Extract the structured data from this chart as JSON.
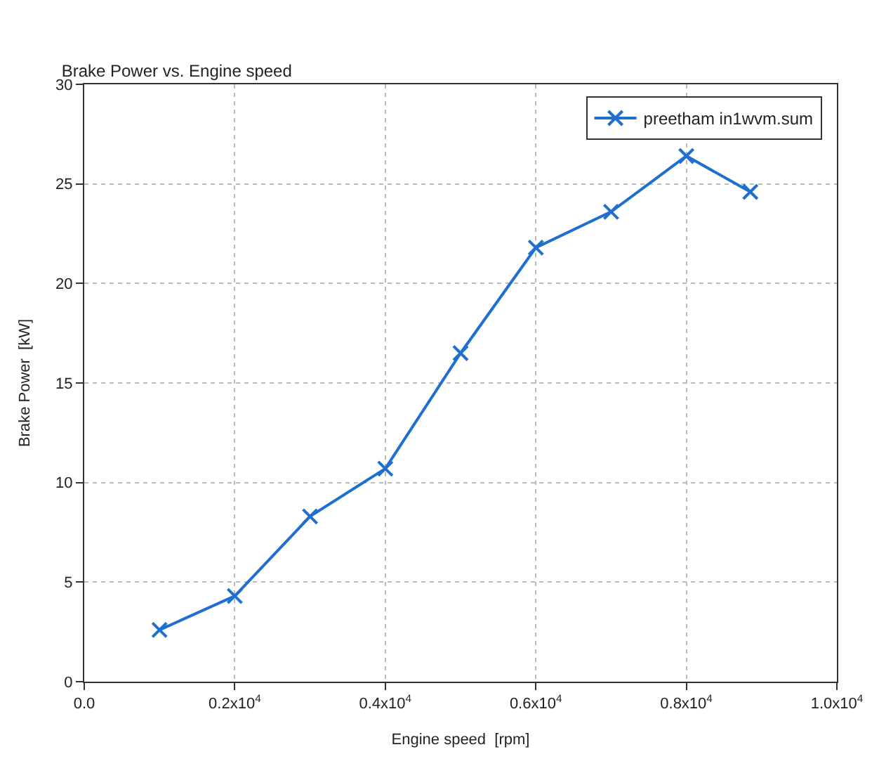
{
  "chart_data": {
    "type": "line",
    "title": "Brake Power vs. Engine speed",
    "xlabel": "Engine speed  [rpm]",
    "ylabel": "Brake Power  [kW]",
    "x": [
      1000,
      2000,
      3000,
      4000,
      5000,
      6000,
      7000,
      8000,
      8850
    ],
    "series": [
      {
        "name": "preetham in1wvm.sum",
        "color": "#1f6fd1",
        "values": [
          2.6,
          4.3,
          8.3,
          10.7,
          16.5,
          21.8,
          23.6,
          26.4,
          24.6
        ]
      }
    ],
    "xlim": [
      0,
      10000
    ],
    "xticks": [
      {
        "value": 0,
        "label": "0.0"
      },
      {
        "value": 2000,
        "label": "0.2x10$^{4}$"
      },
      {
        "value": 4000,
        "label": "0.4x10$^{4}$"
      },
      {
        "value": 6000,
        "label": "0.6x10$^{4}$"
      },
      {
        "value": 8000,
        "label": "0.8x10$^{4}$"
      },
      {
        "value": 10000,
        "label": "1.0x10$^{4}$"
      }
    ],
    "ylim": [
      0,
      30
    ],
    "yticks": [
      0,
      5,
      10,
      15,
      20,
      25,
      30
    ],
    "grid": true,
    "legend": "top right",
    "marker": "cross",
    "line_style": "solid"
  }
}
